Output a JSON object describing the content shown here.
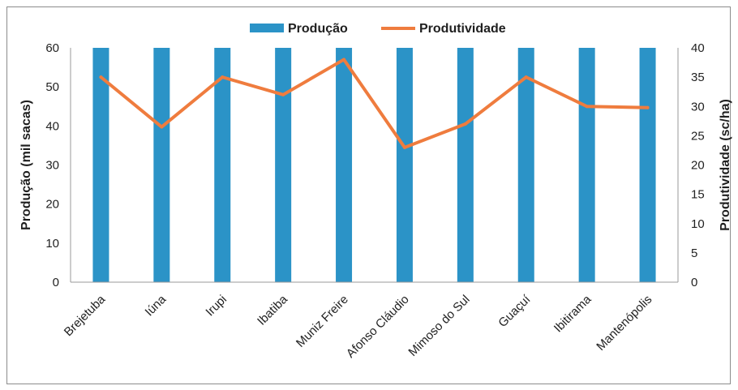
{
  "chart_data": {
    "type": "bar",
    "categories": [
      "Brejetuba",
      "Iúna",
      "Irupi",
      "Ibatiba",
      "Muniz Freire",
      "Afonso Cláudio",
      "Mimoso do Sul",
      "Guaçuí",
      "Ibitirama",
      "Mantenópolis"
    ],
    "series": [
      {
        "name": "Produção",
        "type": "bar",
        "axis": "left",
        "color": "#2b93c7",
        "values": [
          60,
          60,
          60,
          60,
          60,
          60,
          60,
          60,
          60,
          60
        ]
      },
      {
        "name": "Produtividade",
        "type": "line",
        "axis": "right",
        "color": "#ef7c3e",
        "values": [
          35,
          26.5,
          35,
          32,
          38,
          23,
          27,
          35,
          30,
          29.8
        ]
      }
    ],
    "ylabel": "Produção (mil sacas)",
    "y2label": "Produtividade (sc/ha)",
    "ylim": [
      0,
      60
    ],
    "y2lim": [
      0,
      40
    ],
    "yticks": [
      "0",
      "10",
      "20",
      "30",
      "40",
      "50",
      "60"
    ],
    "y2ticks": [
      "0",
      "5",
      "10",
      "15",
      "20",
      "25",
      "30",
      "35",
      "40"
    ],
    "legend_position": "top",
    "grid": false
  }
}
